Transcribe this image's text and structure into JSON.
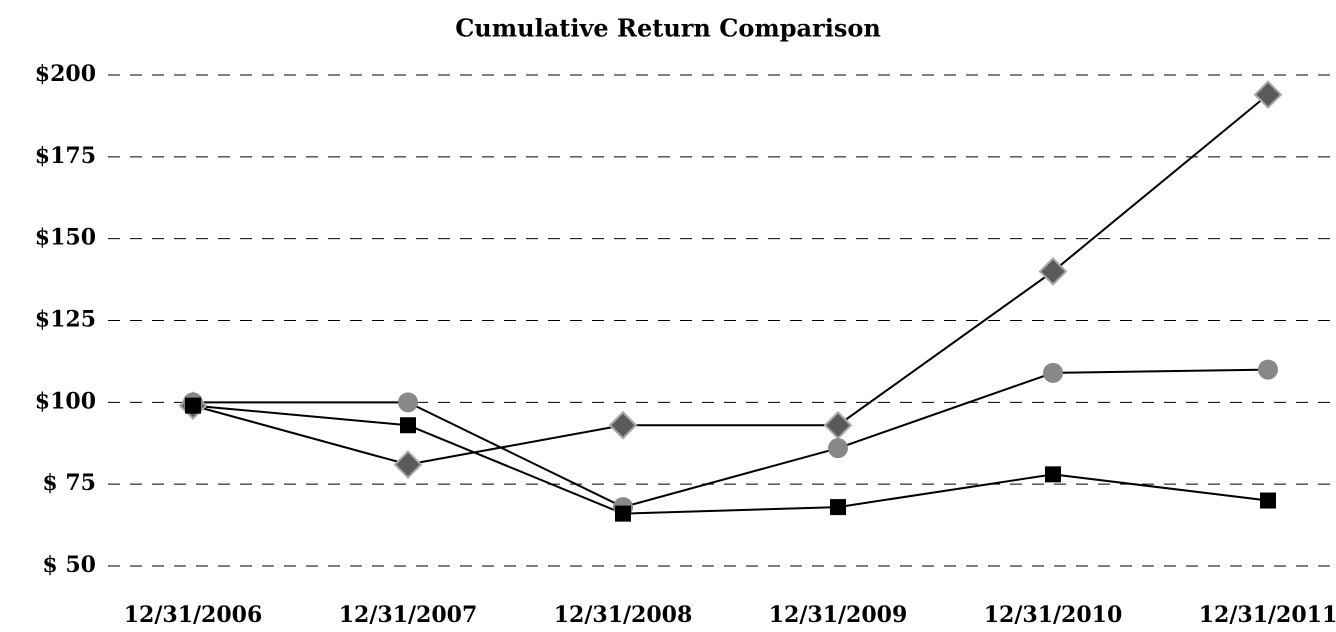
{
  "chart_data": {
    "type": "line",
    "title": "Cumulative Return Comparison",
    "categories": [
      "12/31/2006",
      "12/31/2007",
      "12/31/2008",
      "12/31/2009",
      "12/31/2010",
      "12/31/2011"
    ],
    "series": [
      {
        "color": "#5a5a5a",
        "marker": "diamond",
        "values": [
          99,
          81,
          93,
          93,
          140,
          194
        ]
      },
      {
        "color": "#888888",
        "marker": "circle",
        "values": [
          100,
          100,
          68,
          86,
          109,
          110
        ]
      },
      {
        "color": "#000000",
        "marker": "square",
        "values": [
          99,
          93,
          66,
          68,
          78,
          70
        ]
      }
    ],
    "line_color": "#000000",
    "ylim": [
      50,
      200
    ],
    "yticks": [
      {
        "value": 50,
        "label": "$ 50"
      },
      {
        "value": 75,
        "label": "$ 75"
      },
      {
        "value": 100,
        "label": "$100"
      },
      {
        "value": 125,
        "label": "$125"
      },
      {
        "value": 150,
        "label": "$150"
      },
      {
        "value": 175,
        "label": "$175"
      },
      {
        "value": 200,
        "label": "$200"
      }
    ],
    "grid": true
  }
}
